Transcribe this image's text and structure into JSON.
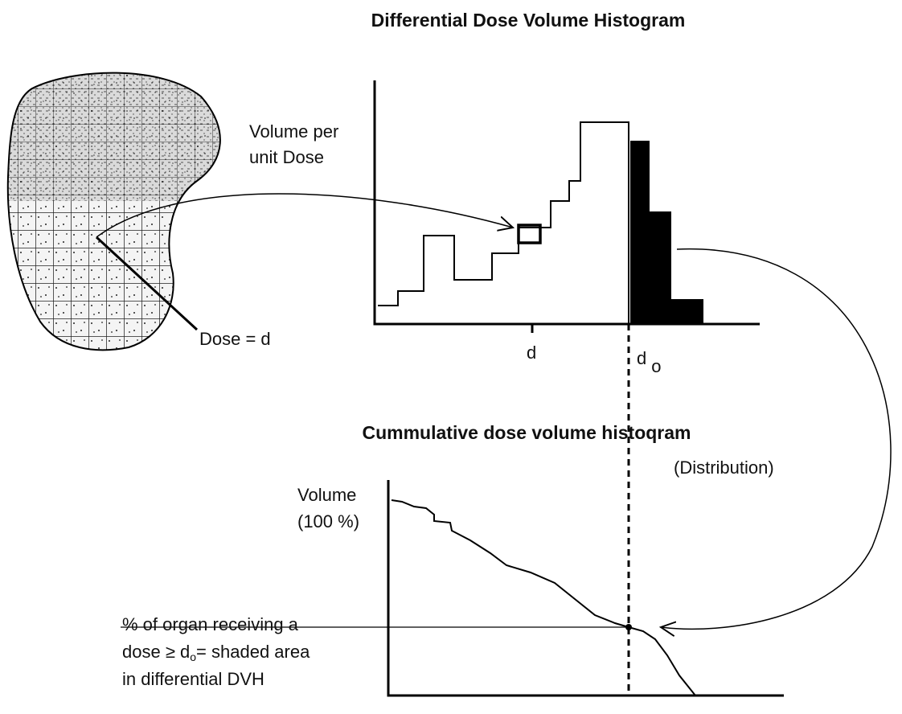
{
  "title": "Differential Dose Volume Histogram",
  "organ": {
    "dose_label": "Dose = d"
  },
  "differential": {
    "y_label": [
      "Volume per",
      "unit Dose"
    ],
    "x_labels": {
      "d": "d",
      "d0": {
        "symbol": "d",
        "subscript": "o"
      }
    }
  },
  "cumulative": {
    "title": "Cummulative dose volume histoqram",
    "subtitle": "(Distribution)",
    "y_label": [
      "Volume",
      "(100 %)"
    ],
    "annotation": {
      "line1": "% of organ receiving a",
      "line2": {
        "before": "dose ≥ d",
        "subscript": "o",
        "after": "= shaded area"
      },
      "line3": "in differential DVH"
    }
  }
}
